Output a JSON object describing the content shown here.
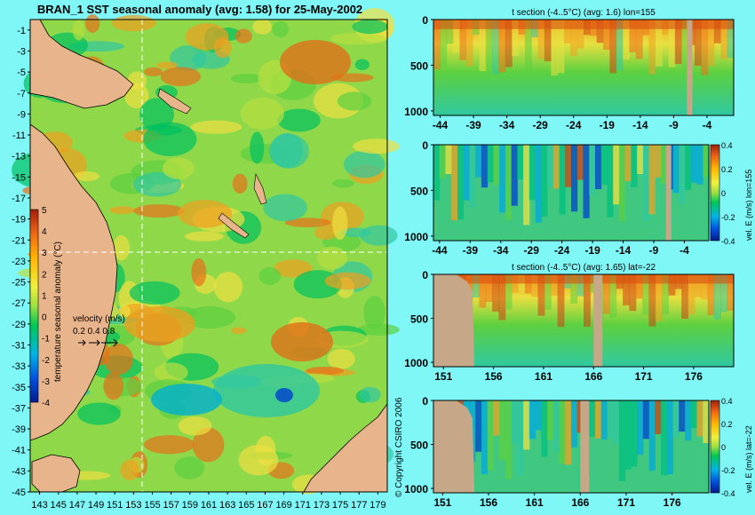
{
  "chart_data": [
    {
      "type": "heatmap",
      "title": "BRAN_1 SST seasonal anomaly (avg: 1.58) for 25-May-2002",
      "x_ticks": [
        "143",
        "145",
        "147",
        "149",
        "151",
        "153",
        "155",
        "157",
        "159",
        "161",
        "163",
        "165",
        "167",
        "169",
        "171",
        "173",
        "175",
        "177",
        "179"
      ],
      "y_ticks": [
        "-1",
        "-3",
        "-5",
        "-7",
        "-9",
        "-11",
        "-13",
        "-15",
        "-17",
        "-19",
        "-21",
        "-23",
        "-25",
        "-27",
        "-29",
        "-31",
        "-33",
        "-35",
        "-37",
        "-39",
        "-41",
        "-43",
        "-45"
      ],
      "xlim": [
        142,
        180
      ],
      "ylim": [
        -45,
        0
      ],
      "crosshair": {
        "lon": 155,
        "lat": -22
      },
      "colorbar": {
        "label": "temperature seasonal anomaly (°C)",
        "ticks": [
          "5",
          "4",
          "3",
          "2",
          "1",
          "0",
          "-1",
          "-2",
          "-3",
          "-4"
        ],
        "range": [
          -4,
          5
        ]
      },
      "velocity_legend": {
        "title": "velocity (m/s)",
        "values": "0.2 0.4 0.8"
      }
    },
    {
      "type": "heatmap",
      "title": "t section (-4..5°C) (avg: 1.6) lon=155",
      "x_ticks": [
        "-44",
        "-39",
        "-34",
        "-29",
        "-24",
        "-19",
        "-14",
        "-9",
        "-4"
      ],
      "y_ticks": [
        "0",
        "500",
        "1000"
      ],
      "xlim": [
        -45,
        0
      ],
      "ylim": [
        1050,
        0
      ]
    },
    {
      "type": "heatmap",
      "title": "",
      "x_ticks": [
        "-44",
        "-39",
        "-34",
        "-29",
        "-24",
        "-19",
        "-14",
        "-9",
        "-4"
      ],
      "y_ticks": [
        "0",
        "500",
        "1000"
      ],
      "xlim": [
        -45,
        0
      ],
      "ylim": [
        1050,
        0
      ],
      "colorbar": {
        "label": "vel. E (m/s) lon=155",
        "ticks": [
          "0.4",
          "0.2",
          "0",
          "-0.2",
          "-0.4"
        ],
        "range": [
          -0.4,
          0.4
        ]
      }
    },
    {
      "type": "heatmap",
      "title": "t section (-4..5°C) (avg: 1.65) lat=-22",
      "x_ticks": [
        "151",
        "156",
        "161",
        "166",
        "171",
        "176"
      ],
      "y_ticks": [
        "0",
        "500",
        "1000"
      ],
      "xlim": [
        150,
        180
      ],
      "ylim": [
        1050,
        0
      ]
    },
    {
      "type": "heatmap",
      "title": "",
      "x_ticks": [
        "151",
        "156",
        "161",
        "166",
        "171",
        "176"
      ],
      "y_ticks": [
        "0",
        "500",
        "1000"
      ],
      "xlim": [
        150,
        180
      ],
      "ylim": [
        1050,
        0
      ],
      "colorbar": {
        "label": "vel. E (m/s) lat=-22",
        "ticks": [
          "0.4",
          "0.2",
          "0",
          "-0.2",
          "-0.4"
        ],
        "range": [
          -0.4,
          0.4
        ]
      }
    }
  ],
  "copyright": "© Copyright CSIRO 2006",
  "colors": {
    "background": "#7ff7f7",
    "land": "#e8b48c",
    "grey_land": "#c6a888",
    "scale": [
      "#001a8c",
      "#0050e0",
      "#00b4e6",
      "#00c853",
      "#7ee03c",
      "#f0f03c",
      "#ffb400",
      "#f06414",
      "#a01e0a"
    ]
  }
}
